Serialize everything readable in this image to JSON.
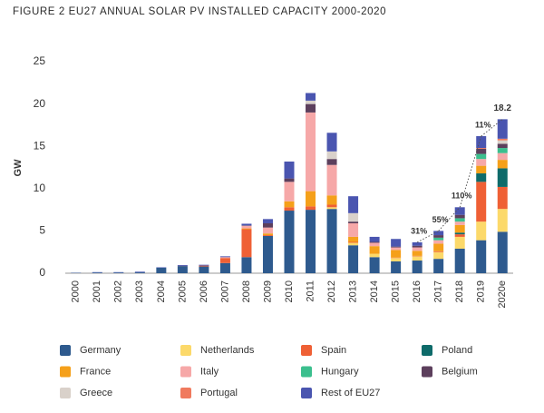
{
  "chart_data": {
    "type": "stacked_bar",
    "title": "FIGURE 2 EU27 ANNUAL SOLAR PV INSTALLED CAPACITY 2000-2020",
    "y_label": "GW",
    "categories": [
      "2000",
      "2001",
      "2002",
      "2003",
      "2004",
      "2005",
      "2006",
      "2007",
      "2008",
      "2009",
      "2010",
      "2011",
      "2012",
      "2013",
      "2014",
      "2015",
      "2016",
      "2017",
      "2018",
      "2019",
      "2020e"
    ],
    "series": [
      {
        "name": "Germany",
        "color": "#2e5a8e",
        "values": [
          0.04,
          0.08,
          0.08,
          0.1,
          0.65,
          0.85,
          0.8,
          1.2,
          1.9,
          4.4,
          7.4,
          7.5,
          7.6,
          3.3,
          1.9,
          1.4,
          1.5,
          1.7,
          2.9,
          3.9,
          4.9
        ]
      },
      {
        "name": "Netherlands",
        "color": "#fcd96a",
        "values": [
          0,
          0,
          0,
          0,
          0,
          0,
          0,
          0,
          0,
          0,
          0,
          0,
          0.2,
          0.3,
          0.4,
          0.4,
          0.5,
          0.8,
          1.4,
          2.2,
          2.7
        ]
      },
      {
        "name": "Spain",
        "color": "#ef6035",
        "values": [
          0,
          0,
          0,
          0,
          0,
          0.02,
          0.1,
          0.6,
          3.3,
          0.1,
          0.4,
          0.4,
          0.3,
          0.1,
          0,
          0.05,
          0.05,
          0.1,
          0.3,
          4.7,
          2.6
        ]
      },
      {
        "name": "Poland",
        "color": "#0e6b6a",
        "values": [
          0,
          0,
          0,
          0,
          0,
          0,
          0,
          0,
          0,
          0,
          0,
          0,
          0,
          0,
          0,
          0,
          0,
          0,
          0.2,
          1.0,
          2.2
        ]
      },
      {
        "name": "France",
        "color": "#f5a01a",
        "values": [
          0,
          0,
          0,
          0,
          0,
          0,
          0,
          0,
          0.1,
          0.2,
          0.7,
          1.8,
          1.1,
          0.6,
          0.9,
          0.9,
          0.6,
          0.9,
          0.9,
          0.9,
          1.0
        ]
      },
      {
        "name": "Italy",
        "color": "#f6a8a8",
        "values": [
          0,
          0,
          0,
          0,
          0,
          0,
          0,
          0.1,
          0.3,
          0.7,
          2.3,
          9.3,
          3.6,
          1.6,
          0.4,
          0.3,
          0.4,
          0.4,
          0.4,
          0.8,
          0.8
        ]
      },
      {
        "name": "Hungary",
        "color": "#3bbf8e",
        "values": [
          0,
          0,
          0,
          0,
          0,
          0,
          0,
          0,
          0,
          0,
          0,
          0,
          0,
          0,
          0,
          0,
          0,
          0.3,
          0.4,
          0.6,
          0.6
        ]
      },
      {
        "name": "Belgium",
        "color": "#5c3f5c",
        "values": [
          0,
          0,
          0,
          0,
          0,
          0,
          0,
          0,
          0.05,
          0.5,
          0.4,
          1.0,
          0.7,
          0.2,
          0.1,
          0.1,
          0.2,
          0.3,
          0.4,
          0.6,
          0.5
        ]
      },
      {
        "name": "Greece",
        "color": "#d9d1ca",
        "values": [
          0,
          0,
          0,
          0,
          0,
          0,
          0,
          0,
          0,
          0,
          0,
          0.4,
          0.9,
          1.0,
          0,
          0,
          0,
          0,
          0,
          0,
          0.4
        ]
      },
      {
        "name": "Portugal",
        "color": "#f07a5e",
        "values": [
          0,
          0,
          0,
          0,
          0,
          0,
          0,
          0,
          0,
          0,
          0,
          0,
          0,
          0,
          0,
          0,
          0,
          0,
          0,
          0.1,
          0.2
        ]
      },
      {
        "name": "Rest of EU27",
        "color": "#4a55b0",
        "values": [
          0.02,
          0.05,
          0.05,
          0.08,
          0.05,
          0.1,
          0.1,
          0.1,
          0.2,
          0.5,
          2.0,
          0.9,
          2.2,
          2.0,
          0.6,
          0.9,
          0.4,
          0.5,
          0.9,
          1.4,
          2.3
        ]
      }
    ],
    "annotations": [
      "31%",
      "55%",
      "110%",
      "11%",
      "18.2"
    ],
    "ylim": [
      0,
      25
    ],
    "yticks": [
      0,
      5,
      10,
      15,
      20,
      25
    ],
    "grid": false
  }
}
